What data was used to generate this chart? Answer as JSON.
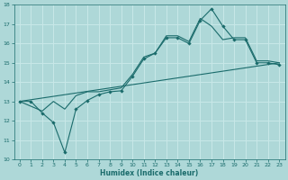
{
  "xlabel": "Humidex (Indice chaleur)",
  "xlim": [
    -0.5,
    23.5
  ],
  "ylim": [
    10,
    18
  ],
  "xticks": [
    0,
    1,
    2,
    3,
    4,
    5,
    6,
    7,
    8,
    9,
    10,
    11,
    12,
    13,
    14,
    15,
    16,
    17,
    18,
    19,
    20,
    21,
    22,
    23
  ],
  "yticks": [
    10,
    11,
    12,
    13,
    14,
    15,
    16,
    17,
    18
  ],
  "bg_color": "#aed8d8",
  "grid_color": "#c8e8e8",
  "line_color": "#1a6b6b",
  "line1_x": [
    0,
    1,
    2,
    3,
    4,
    5,
    6,
    7,
    8,
    9,
    10,
    11,
    12,
    13,
    14,
    15,
    16,
    17,
    18,
    19,
    20,
    21,
    22,
    23
  ],
  "line1_y": [
    13.0,
    13.0,
    12.4,
    11.9,
    10.35,
    12.6,
    13.05,
    13.35,
    13.5,
    13.55,
    14.3,
    15.2,
    15.5,
    16.3,
    16.3,
    16.0,
    17.2,
    17.8,
    16.9,
    16.2,
    16.2,
    15.0,
    15.0,
    14.9
  ],
  "line2_x": [
    0,
    2,
    3,
    4,
    5,
    6,
    7,
    8,
    9,
    10,
    11,
    12,
    13,
    14,
    15,
    16,
    17,
    18,
    19,
    20,
    21,
    22,
    23
  ],
  "line2_y": [
    13.0,
    12.5,
    13.0,
    12.6,
    13.3,
    13.5,
    13.5,
    13.6,
    13.7,
    14.4,
    15.3,
    15.5,
    16.4,
    16.4,
    16.1,
    17.3,
    16.9,
    16.2,
    16.3,
    16.3,
    15.1,
    15.1,
    15.0
  ],
  "line3_x": [
    0,
    23
  ],
  "line3_y": [
    13.0,
    15.0
  ]
}
